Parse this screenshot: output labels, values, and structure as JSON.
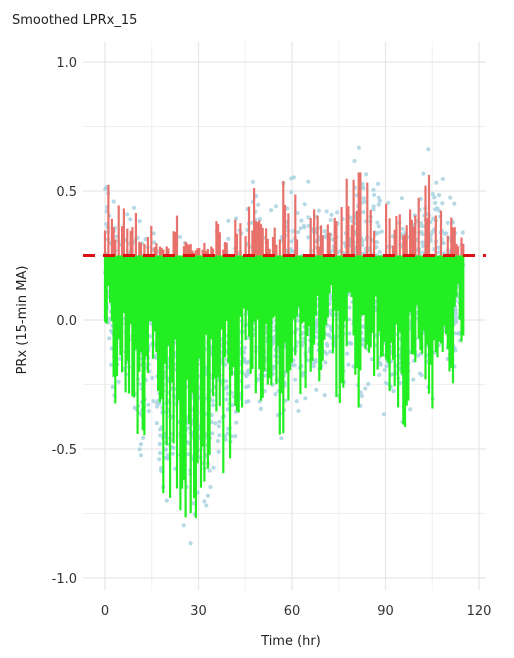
{
  "chart_data": {
    "type": "scatter",
    "title": "Smoothed LPRx_15",
    "xlabel": "Time (hr)",
    "ylabel": "PRx (15-min MA)",
    "xlim": [
      -3,
      122
    ],
    "ylim": [
      -1.0,
      1.0
    ],
    "xticks": [
      0,
      30,
      60,
      90,
      120
    ],
    "yticks": [
      -1.0,
      -0.5,
      0.0,
      0.5,
      1.0
    ],
    "ytick_labels": [
      "-1.0",
      "-0.5",
      "0.0",
      "0.5",
      "1.0"
    ],
    "grid": true,
    "threshold": 0.25,
    "x_range_of_data": [
      0,
      115
    ],
    "colors": {
      "points": "#a9d3e0",
      "above_threshold": "#e8716b",
      "below_threshold": "#22ee22",
      "threshold_line": "#dd1111",
      "grid": "#e6e6e6"
    },
    "series": [
      {
        "type": "scatter",
        "description_color": "light-blue",
        "values": "raw points"
      },
      {
        "type": "line",
        "values": "smoothed signal"
      },
      {
        "type": "hline",
        "y": 0.25
      }
    ],
    "smoothed_envelope": [
      {
        "x": 0,
        "y_max": 0.68,
        "y_min": -0.05
      },
      {
        "x": 3,
        "y_max": 0.42,
        "y_min": -0.35
      },
      {
        "x": 6,
        "y_max": 0.52,
        "y_min": -0.4
      },
      {
        "x": 9,
        "y_max": 0.45,
        "y_min": -0.3
      },
      {
        "x": 12,
        "y_max": 0.38,
        "y_min": -0.62
      },
      {
        "x": 15,
        "y_max": 0.4,
        "y_min": -0.2
      },
      {
        "x": 18,
        "y_max": 0.28,
        "y_min": -0.85
      },
      {
        "x": 21,
        "y_max": 0.3,
        "y_min": -0.7
      },
      {
        "x": 24,
        "y_max": 0.45,
        "y_min": -0.8
      },
      {
        "x": 27,
        "y_max": 0.3,
        "y_min": -0.88
      },
      {
        "x": 30,
        "y_max": 0.28,
        "y_min": -0.92
      },
      {
        "x": 33,
        "y_max": 0.35,
        "y_min": -0.78
      },
      {
        "x": 36,
        "y_max": 0.4,
        "y_min": -0.55
      },
      {
        "x": 39,
        "y_max": 0.32,
        "y_min": -0.65
      },
      {
        "x": 42,
        "y_max": 0.45,
        "y_min": -0.58
      },
      {
        "x": 45,
        "y_max": 0.4,
        "y_min": -0.45
      },
      {
        "x": 48,
        "y_max": 0.62,
        "y_min": -0.3
      },
      {
        "x": 51,
        "y_max": 0.35,
        "y_min": -0.4
      },
      {
        "x": 54,
        "y_max": 0.38,
        "y_min": -0.35
      },
      {
        "x": 57,
        "y_max": 0.55,
        "y_min": -0.62
      },
      {
        "x": 60,
        "y_max": 0.5,
        "y_min": -0.2
      },
      {
        "x": 63,
        "y_max": 0.48,
        "y_min": -0.35
      },
      {
        "x": 66,
        "y_max": 0.55,
        "y_min": -0.25
      },
      {
        "x": 69,
        "y_max": 0.4,
        "y_min": -0.3
      },
      {
        "x": 72,
        "y_max": 0.38,
        "y_min": -0.15
      },
      {
        "x": 75,
        "y_max": 0.45,
        "y_min": -0.35
      },
      {
        "x": 78,
        "y_max": 0.58,
        "y_min": -0.25
      },
      {
        "x": 81,
        "y_max": 0.75,
        "y_min": -0.4
      },
      {
        "x": 84,
        "y_max": 0.55,
        "y_min": -0.3
      },
      {
        "x": 87,
        "y_max": 0.62,
        "y_min": -0.2
      },
      {
        "x": 90,
        "y_max": 0.48,
        "y_min": -0.38
      },
      {
        "x": 93,
        "y_max": 0.42,
        "y_min": -0.3
      },
      {
        "x": 96,
        "y_max": 0.5,
        "y_min": -0.46
      },
      {
        "x": 99,
        "y_max": 0.45,
        "y_min": -0.2
      },
      {
        "x": 102,
        "y_max": 0.58,
        "y_min": -0.25
      },
      {
        "x": 105,
        "y_max": 0.7,
        "y_min": -0.35
      },
      {
        "x": 108,
        "y_max": 0.62,
        "y_min": -0.2
      },
      {
        "x": 111,
        "y_max": 0.45,
        "y_min": -0.32
      },
      {
        "x": 114,
        "y_max": 0.35,
        "y_min": -0.1
      }
    ]
  }
}
